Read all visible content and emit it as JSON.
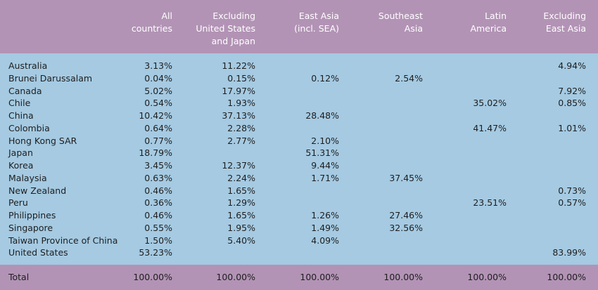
{
  "columns": [
    {
      "key": "all",
      "label": "All\ncountries"
    },
    {
      "key": "ex_us_jp",
      "label": "Excluding\nUnited States\nand Japan"
    },
    {
      "key": "east_asia",
      "label": "East Asia\n(incl. SEA)"
    },
    {
      "key": "se_asia",
      "label": "Southeast\nAsia"
    },
    {
      "key": "latam",
      "label": "Latin\nAmerica"
    },
    {
      "key": "ex_east_asia",
      "label": "Excluding\nEast Asia"
    }
  ],
  "rows": [
    {
      "label": "Australia",
      "values": [
        "3.13%",
        "11.22%",
        "",
        "",
        "",
        "4.94%"
      ]
    },
    {
      "label": "Brunei Darussalam",
      "values": [
        "0.04%",
        "0.15%",
        "0.12%",
        "2.54%",
        "",
        ""
      ]
    },
    {
      "label": "Canada",
      "values": [
        "5.02%",
        "17.97%",
        "",
        "",
        "",
        "7.92%"
      ]
    },
    {
      "label": "Chile",
      "values": [
        "0.54%",
        "1.93%",
        "",
        "",
        "35.02%",
        "0.85%"
      ]
    },
    {
      "label": "China",
      "values": [
        "10.42%",
        "37.13%",
        "28.48%",
        "",
        "",
        ""
      ]
    },
    {
      "label": "Colombia",
      "values": [
        "0.64%",
        "2.28%",
        "",
        "",
        "41.47%",
        "1.01%"
      ]
    },
    {
      "label": "Hong Kong SAR",
      "values": [
        "0.77%",
        "2.77%",
        "2.10%",
        "",
        "",
        ""
      ]
    },
    {
      "label": "Japan",
      "values": [
        "18.79%",
        "",
        "51.31%",
        "",
        "",
        ""
      ]
    },
    {
      "label": "Korea",
      "values": [
        "3.45%",
        "12.37%",
        "9.44%",
        "",
        "",
        ""
      ]
    },
    {
      "label": "Malaysia",
      "values": [
        "0.63%",
        "2.24%",
        "1.71%",
        "37.45%",
        "",
        ""
      ]
    },
    {
      "label": "New Zealand",
      "values": [
        "0.46%",
        "1.65%",
        "",
        "",
        "",
        "0.73%"
      ]
    },
    {
      "label": "Peru",
      "values": [
        "0.36%",
        "1.29%",
        "",
        "",
        "23.51%",
        "0.57%"
      ]
    },
    {
      "label": "Philippines",
      "values": [
        "0.46%",
        "1.65%",
        "1.26%",
        "27.46%",
        "",
        ""
      ]
    },
    {
      "label": "Singapore",
      "values": [
        "0.55%",
        "1.95%",
        "1.49%",
        "32.56%",
        "",
        ""
      ]
    },
    {
      "label": "Taiwan Province of China",
      "values": [
        "1.50%",
        "5.40%",
        "4.09%",
        "",
        "",
        ""
      ]
    },
    {
      "label": "United States",
      "values": [
        "53.23%",
        "",
        "",
        "",
        "",
        "83.99%"
      ]
    }
  ],
  "total": {
    "label": "Total",
    "values": [
      "100.00%",
      "100.00%",
      "100.00%",
      "100.00%",
      "100.00%",
      "100.00%"
    ]
  },
  "colors": {
    "header_bg": "#b293b5",
    "body_bg": "#a5cae2",
    "header_text": "#ffffff",
    "body_text": "#1e1e1e"
  }
}
